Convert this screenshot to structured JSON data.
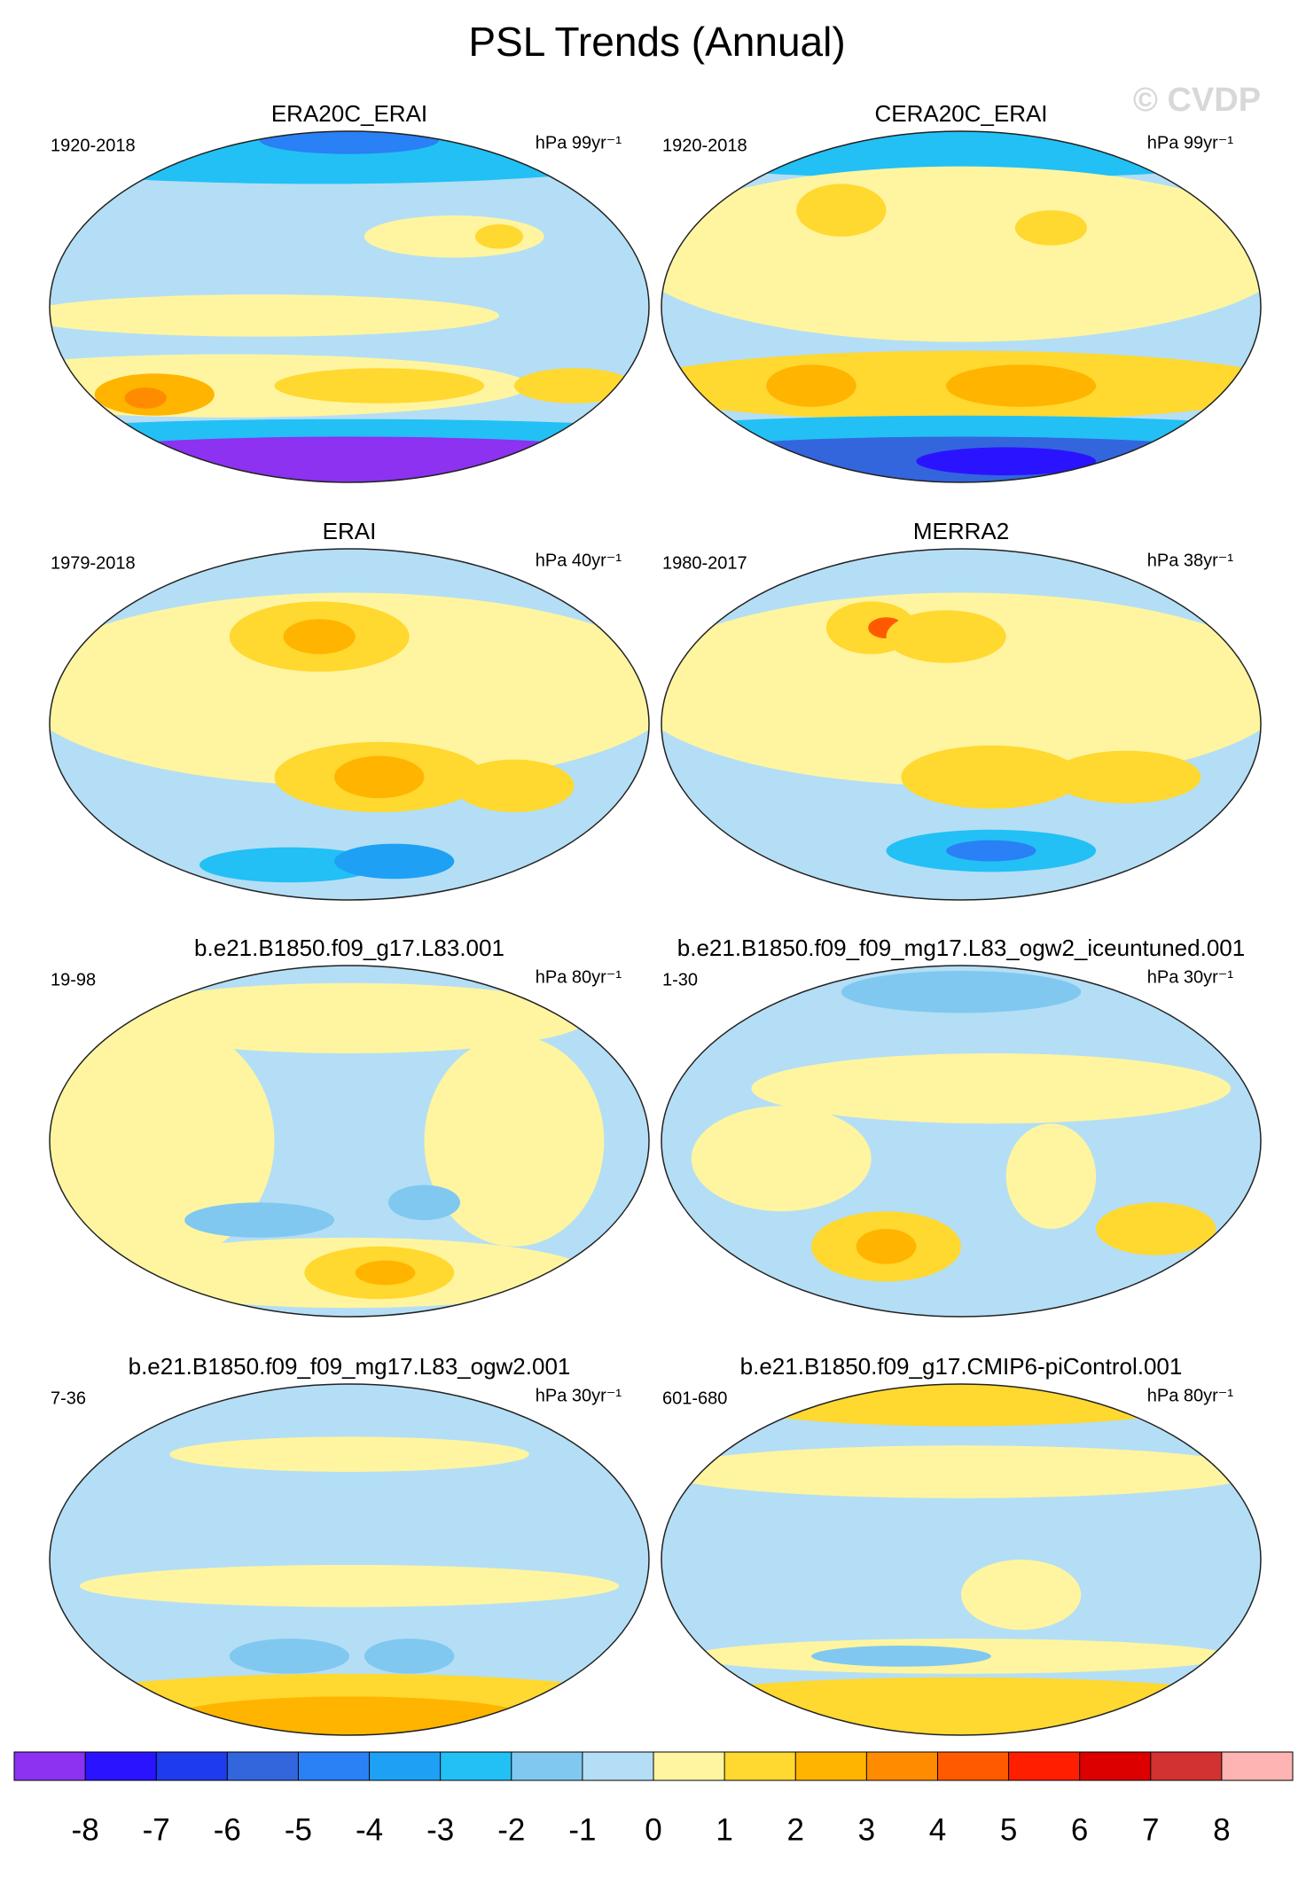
{
  "title": "PSL Trends (Annual)",
  "watermark": "© CVDP",
  "panels": [
    {
      "title": "ERA20C_ERAI",
      "period": "1920-2018",
      "units": "hPa 99yr⁻¹"
    },
    {
      "title": "CERA20C_ERAI",
      "period": "1920-2018",
      "units": "hPa 99yr⁻¹"
    },
    {
      "title": "ERAI",
      "period": "1979-2018",
      "units": "hPa 40yr⁻¹"
    },
    {
      "title": "MERRA2",
      "period": "1980-2017",
      "units": "hPa 38yr⁻¹"
    },
    {
      "title": "b.e21.B1850.f09_g17.L83.001",
      "period": "19-98",
      "units": "hPa 80yr⁻¹"
    },
    {
      "title": "b.e21.B1850.f09_f09_mg17.L83_ogw2_iceuntuned.001",
      "period": "1-30",
      "units": "hPa 30yr⁻¹"
    },
    {
      "title": "b.e21.B1850.f09_f09_mg17.L83_ogw2.001",
      "period": "7-36",
      "units": "hPa 30yr⁻¹"
    },
    {
      "title": "b.e21.B1850.f09_g17.CMIP6-piControl.001",
      "period": "601-680",
      "units": "hPa 80yr⁻¹"
    }
  ],
  "colorbar": {
    "colors": [
      "#8c32f0",
      "#2a14ff",
      "#1e3ced",
      "#3366dd",
      "#2a80f5",
      "#1ea0f5",
      "#22c0f5",
      "#80c8f0",
      "#b4def5",
      "#fff5a0",
      "#ffd830",
      "#ffb400",
      "#ff8c00",
      "#ff5a00",
      "#ff1e00",
      "#dc0000",
      "#d23232",
      "#ffb4b4"
    ],
    "ticks": [
      -8,
      -7,
      -6,
      -5,
      -4,
      -3,
      -2,
      -1,
      0,
      1,
      2,
      3,
      4,
      5,
      6,
      7,
      8
    ]
  }
}
